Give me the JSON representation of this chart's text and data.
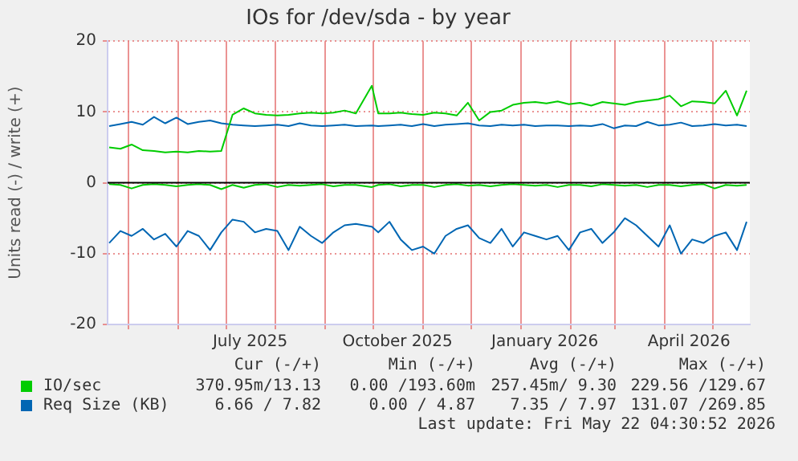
{
  "chart_data": {
    "type": "line",
    "title": "IOs for /dev/sda - by year",
    "ylabel": "Units read (-) / write (+)",
    "x": [
      "2025-04-19",
      "2025-04-26",
      "2025-05-03",
      "2025-05-10",
      "2025-05-17",
      "2025-05-24",
      "2025-05-31",
      "2025-06-07",
      "2025-06-14",
      "2025-06-21",
      "2025-06-28",
      "2025-07-05",
      "2025-07-12",
      "2025-07-19",
      "2025-07-26",
      "2025-08-02",
      "2025-08-09",
      "2025-08-16",
      "2025-08-23",
      "2025-08-30",
      "2025-09-06",
      "2025-09-13",
      "2025-09-20",
      "2025-09-30",
      "2025-10-04",
      "2025-10-11",
      "2025-10-18",
      "2025-10-25",
      "2025-11-01",
      "2025-11-08",
      "2025-11-15",
      "2025-11-22",
      "2025-11-29",
      "2025-12-06",
      "2025-12-13",
      "2025-12-20",
      "2025-12-27",
      "2026-01-03",
      "2026-01-10",
      "2026-01-17",
      "2026-01-24",
      "2026-01-31",
      "2026-02-07",
      "2026-02-14",
      "2026-02-21",
      "2026-02-28",
      "2026-03-07",
      "2026-03-14",
      "2026-03-21",
      "2026-03-28",
      "2026-04-04",
      "2026-04-11",
      "2026-04-18",
      "2026-04-25",
      "2026-05-02",
      "2026-05-09",
      "2026-05-16",
      "2026-05-22"
    ],
    "series": [
      {
        "name": "IO/sec",
        "color": "#00cc00",
        "values": [
          5.0,
          4.8,
          5.4,
          4.6,
          4.5,
          4.3,
          4.4,
          4.3,
          4.5,
          4.4,
          4.5,
          9.6,
          10.5,
          9.8,
          9.6,
          9.5,
          9.6,
          9.8,
          9.9,
          9.8,
          9.9,
          10.2,
          9.8,
          13.7,
          9.8,
          9.8,
          9.9,
          9.7,
          9.6,
          9.9,
          9.8,
          9.5,
          11.3,
          8.8,
          10.0,
          10.2,
          11.0,
          11.3,
          11.4,
          11.2,
          11.5,
          11.1,
          11.3,
          10.9,
          11.4,
          11.2,
          11.0,
          11.4,
          11.6,
          11.8,
          12.3,
          10.8,
          11.5,
          11.4,
          11.2,
          13.0,
          9.5,
          13.0
        ]
      },
      {
        "color": "#00cc00",
        "values": [
          -0.2,
          -0.3,
          -0.8,
          -0.3,
          -0.2,
          -0.3,
          -0.5,
          -0.3,
          -0.2,
          -0.3,
          -0.9,
          -0.3,
          -0.7,
          -0.3,
          -0.2,
          -0.6,
          -0.3,
          -0.4,
          -0.3,
          -0.2,
          -0.5,
          -0.3,
          -0.3,
          -0.6,
          -0.3,
          -0.2,
          -0.5,
          -0.3,
          -0.3,
          -0.6,
          -0.3,
          -0.2,
          -0.4,
          -0.3,
          -0.5,
          -0.3,
          -0.2,
          -0.3,
          -0.4,
          -0.3,
          -0.6,
          -0.3,
          -0.3,
          -0.5,
          -0.2,
          -0.3,
          -0.4,
          -0.3,
          -0.6,
          -0.3,
          -0.3,
          -0.5,
          -0.3,
          -0.2,
          -0.8,
          -0.3,
          -0.4,
          -0.3
        ]
      },
      {
        "name": "Req Size (KB)",
        "color": "#0066b3",
        "values": [
          8.0,
          8.3,
          8.6,
          8.2,
          9.3,
          8.4,
          9.2,
          8.3,
          8.6,
          8.8,
          8.4,
          8.2,
          8.1,
          8.0,
          8.1,
          8.2,
          8.0,
          8.4,
          8.1,
          8.0,
          8.1,
          8.2,
          8.0,
          8.1,
          8.0,
          8.1,
          8.2,
          8.0,
          8.3,
          8.0,
          8.2,
          8.3,
          8.4,
          8.1,
          8.0,
          8.2,
          8.1,
          8.2,
          8.0,
          8.1,
          8.1,
          8.0,
          8.1,
          8.0,
          8.3,
          7.7,
          8.1,
          8.0,
          8.6,
          8.1,
          8.2,
          8.5,
          8.0,
          8.1,
          8.3,
          8.1,
          8.2,
          8.0
        ]
      },
      {
        "color": "#0066b3",
        "values": [
          -8.5,
          -6.8,
          -7.5,
          -6.5,
          -8.0,
          -7.2,
          -9.0,
          -6.8,
          -7.5,
          -9.5,
          -7.0,
          -5.2,
          -5.5,
          -7.0,
          -6.5,
          -6.8,
          -9.5,
          -6.2,
          -7.5,
          -8.5,
          -7.0,
          -6.0,
          -5.8,
          -6.2,
          -7.0,
          -5.5,
          -8.0,
          -9.5,
          -9.0,
          -10.0,
          -7.5,
          -6.5,
          -6.0,
          -7.8,
          -8.5,
          -6.5,
          -9.0,
          -7.0,
          -7.5,
          -8.0,
          -7.5,
          -9.5,
          -7.0,
          -6.5,
          -8.5,
          -7.0,
          -5.0,
          -6.0,
          -7.5,
          -9.0,
          -6.0,
          -10.0,
          -8.0,
          -8.5,
          -7.5,
          -7.0,
          -9.5,
          -5.5
        ]
      }
    ],
    "xlim": [
      "2025-04-18",
      "2026-05-24"
    ],
    "xticks": [
      {
        "value": "2025-05-01",
        "label": null
      },
      {
        "value": "2025-06-01",
        "label": null
      },
      {
        "value": "2025-07-01",
        "label": null
      },
      {
        "value": "2025-07-16",
        "label": "July 2025"
      },
      {
        "value": "2025-08-01",
        "label": null
      },
      {
        "value": "2025-09-01",
        "label": null
      },
      {
        "value": "2025-10-01",
        "label": null
      },
      {
        "value": "2025-10-16",
        "label": "October 2025"
      },
      {
        "value": "2025-11-01",
        "label": null
      },
      {
        "value": "2025-12-01",
        "label": null
      },
      {
        "value": "2026-01-01",
        "label": null
      },
      {
        "value": "2026-01-16",
        "label": "January 2026"
      },
      {
        "value": "2026-02-01",
        "label": null
      },
      {
        "value": "2026-03-01",
        "label": null
      },
      {
        "value": "2026-04-01",
        "label": null
      },
      {
        "value": "2026-04-16",
        "label": "April 2026"
      },
      {
        "value": "2026-05-01",
        "label": null
      }
    ],
    "ylim": [
      -20,
      20
    ],
    "yticks": [
      -20,
      -10,
      0,
      10,
      20
    ],
    "ref_lines": [
      {
        "axis": "y",
        "value": 0,
        "color": "#000000"
      }
    ],
    "grid": true,
    "legend": "bottom",
    "marker": "none",
    "line_style": "solid",
    "annotations": [
      "Cur (-/+)",
      "Min (-/+)",
      "Avg (-/+)",
      "Max (-/+)",
      "370.95m/13.13",
      "0.00 /193.60m",
      "257.45m/ 9.30",
      "229.56 /129.67",
      "6.66 / 7.82",
      "0.00 / 4.87",
      "7.35 / 7.97",
      "131.07 /269.85",
      "Last update: Fri May 22 04:30:52 2026"
    ]
  }
}
